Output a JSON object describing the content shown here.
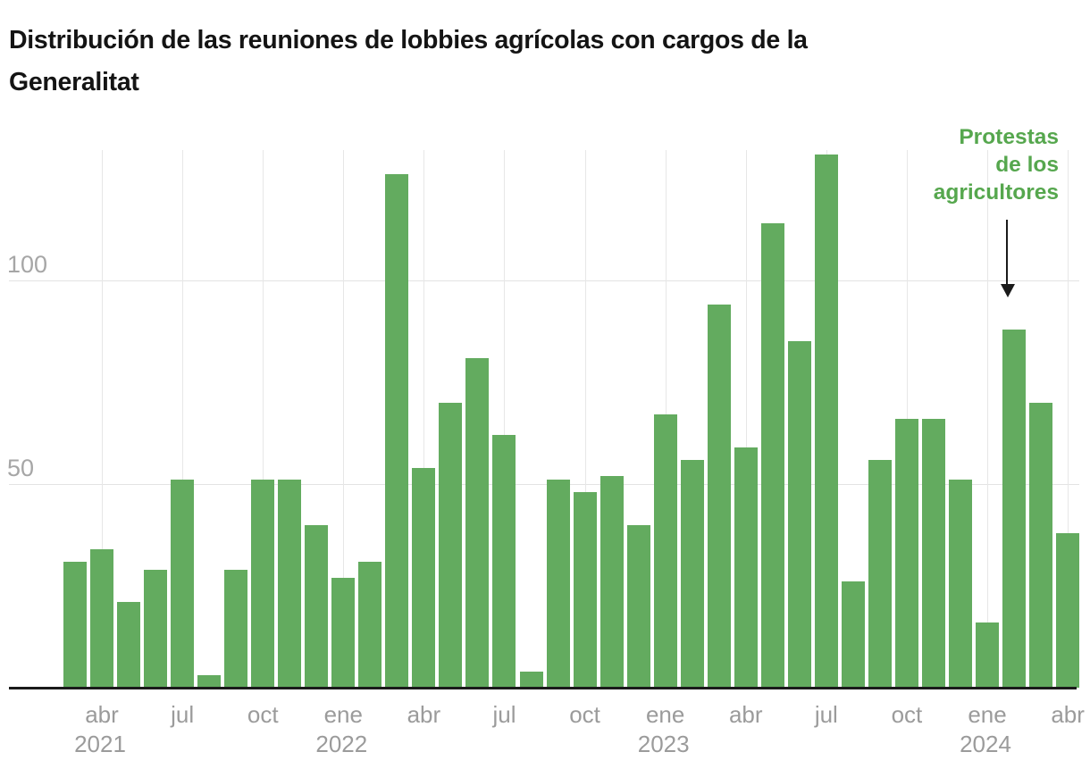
{
  "title": {
    "line1": "Distribución de las reuniones de lobbies agrícolas con cargos de la",
    "line2": "Generalitat"
  },
  "colors": {
    "bar": "#63ab5f",
    "annotation_text": "#56a74e",
    "axis_text": "#9b9b9b",
    "ytick_text": "#a6a6a6",
    "gridline": "#e3e3e3",
    "baseline": "#1a1a1a",
    "title_text": "#141414"
  },
  "chart_data": {
    "type": "bar",
    "title": "Distribución de las reuniones de lobbies agrícolas con cargos de la Generalitat",
    "xlabel": "",
    "ylabel": "",
    "ylim": [
      0,
      134
    ],
    "yticks": [
      50,
      100
    ],
    "grid": "horizontal 50/100 + vertical quarterly",
    "legend": "none",
    "x": [
      "mar 2021",
      "abr 2021",
      "may 2021",
      "jun 2021",
      "jul 2021",
      "ago 2021",
      "sep 2021",
      "oct 2021",
      "nov 2021",
      "dic 2021",
      "ene 2022",
      "feb 2022",
      "mar 2022",
      "abr 2022",
      "may 2022",
      "jun 2022",
      "jul 2022",
      "ago 2022",
      "sep 2022",
      "oct 2022",
      "nov 2022",
      "dic 2022",
      "ene 2023",
      "feb 2023",
      "mar 2023",
      "abr 2023",
      "may 2023",
      "jun 2023",
      "jul 2023",
      "ago 2023",
      "sep 2023",
      "oct 2023",
      "nov 2023",
      "dic 2023",
      "ene 2024",
      "feb 2024",
      "mar 2024",
      "abr 2024"
    ],
    "values": [
      31,
      34,
      21,
      29,
      51,
      3,
      29,
      51,
      51,
      40,
      27,
      31,
      126,
      54,
      70,
      81,
      62,
      4,
      51,
      48,
      52,
      40,
      67,
      56,
      94,
      59,
      114,
      85,
      131,
      26,
      56,
      66,
      66,
      51,
      16,
      88,
      70,
      38
    ],
    "xticks": [
      {
        "index": 1,
        "label": "abr",
        "year": "2021"
      },
      {
        "index": 4,
        "label": "jul"
      },
      {
        "index": 7,
        "label": "oct"
      },
      {
        "index": 10,
        "label": "ene",
        "year": "2022"
      },
      {
        "index": 13,
        "label": "abr"
      },
      {
        "index": 16,
        "label": "jul"
      },
      {
        "index": 19,
        "label": "oct"
      },
      {
        "index": 22,
        "label": "ene",
        "year": "2023"
      },
      {
        "index": 25,
        "label": "abr"
      },
      {
        "index": 28,
        "label": "jul"
      },
      {
        "index": 31,
        "label": "oct"
      },
      {
        "index": 34,
        "label": "ene",
        "year": "2024"
      },
      {
        "index": 37,
        "label": "abr"
      }
    ],
    "annotation": {
      "text": "Protestas de los agricultores",
      "lines": [
        "Protestas",
        "de los",
        "agricultores"
      ],
      "points_to": "feb 2024"
    }
  }
}
